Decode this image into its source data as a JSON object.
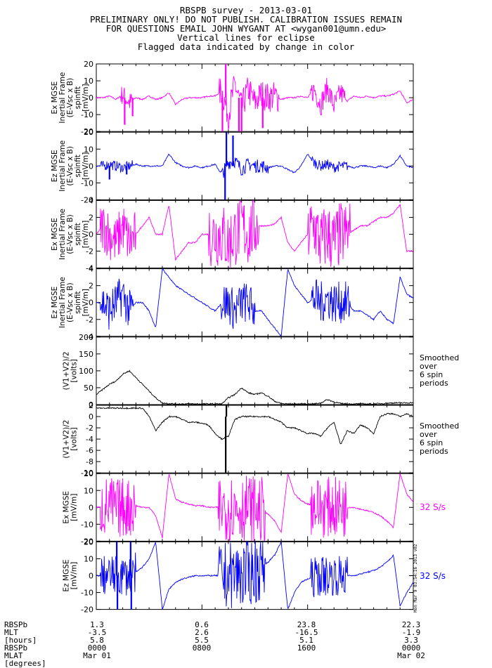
{
  "header": {
    "line1": "RBSPB survey - 2013-03-01",
    "line2": "PRELIMINARY ONLY! DO NOT PUBLISH. CALIBRATION ISSUES REMAIN",
    "line3": "FOR QUESTIONS EMAIL JOHN WYGANT AT <wygan001@umn.edu>",
    "line4": "Vertical lines for eclipse",
    "line5": "Flagged data indicated by change in color"
  },
  "colors": {
    "magenta": "#ff00ff",
    "blue": "#0000ff",
    "black": "#000000"
  },
  "chart_data": [
    {
      "type": "line",
      "ylabel": [
        "Ex MGSE",
        "Inertial Frame",
        "(E-Vsc x B)",
        "spinfit",
        "[mV/m]"
      ],
      "ylim": [
        -20,
        20
      ],
      "yticks": [
        20,
        10,
        0,
        -10,
        -20
      ],
      "color": "#ff00ff",
      "x": [
        0,
        0.5,
        1,
        1.5,
        2,
        2.5,
        3,
        3.5,
        4,
        4.5,
        5,
        5.5,
        6,
        6.5,
        7,
        7.5,
        8,
        8.5,
        9,
        9.5,
        10,
        10.5,
        11,
        11.5,
        12,
        12.5,
        13,
        13.5,
        14,
        14.5,
        15,
        15.5,
        16,
        16.5,
        17,
        17.5,
        18,
        18.5,
        19,
        19.5,
        20,
        20.5,
        21,
        21.5,
        22,
        22.5,
        23,
        23.5,
        24
      ],
      "values": [
        0,
        0,
        1,
        -1,
        2,
        -3,
        0,
        -1,
        1,
        -1,
        0,
        3,
        -4,
        -1,
        0,
        0,
        0,
        1,
        1,
        4,
        -10,
        8,
        -6,
        5,
        -3,
        2,
        0,
        1,
        -1,
        0,
        0,
        1,
        0,
        5,
        -4,
        6,
        -5,
        3,
        -2,
        1,
        0,
        1,
        0,
        1,
        1,
        2,
        4,
        -3,
        -1
      ],
      "bursts": [
        [
          1.8,
          2.8,
          6
        ],
        [
          9.3,
          13.8,
          9
        ],
        [
          16.2,
          18.8,
          7
        ]
      ],
      "spikes": [
        [
          2.15,
          -16
        ],
        [
          2.75,
          -11
        ],
        [
          9.55,
          -20
        ],
        [
          9.8,
          20
        ],
        [
          10.8,
          -20
        ],
        [
          11.0,
          -20
        ],
        [
          12.6,
          -18
        ]
      ],
      "grid": false
    },
    {
      "type": "line",
      "ylabel": [
        "Ez MGSE",
        "Inertial Frame",
        "(E-Vsc x B)",
        "spinfit",
        "[mV/m]"
      ],
      "ylim": [
        -20,
        20
      ],
      "yticks": [
        20,
        10,
        0,
        -10,
        -20
      ],
      "color": "#0000ff",
      "x": [
        0,
        0.5,
        1,
        1.5,
        2,
        2.5,
        3,
        3.5,
        4,
        4.5,
        5,
        5.5,
        6,
        6.5,
        7,
        7.5,
        8,
        8.5,
        9,
        9.5,
        10,
        10.5,
        11,
        11.5,
        12,
        12.5,
        13,
        13.5,
        14,
        14.5,
        15,
        15.5,
        16,
        16.5,
        17,
        17.5,
        18,
        18.5,
        19,
        19.5,
        20,
        20.5,
        21,
        21.5,
        22,
        22.5,
        23,
        23.5,
        24
      ],
      "values": [
        0,
        0,
        1,
        0,
        -1,
        0,
        1,
        0,
        0,
        0,
        0,
        7,
        2,
        0,
        -1,
        0,
        -1,
        0,
        1,
        -5,
        2,
        3,
        -2,
        1,
        0,
        0,
        -1,
        0,
        0,
        -2,
        -4,
        0,
        7,
        2,
        0,
        1,
        -1,
        0,
        0,
        -1,
        0,
        0,
        -1,
        0,
        -1,
        1,
        6,
        0,
        -1
      ],
      "bursts": [
        [
          0.3,
          2.8,
          3
        ],
        [
          9.4,
          13,
          4
        ],
        [
          16.3,
          19,
          3
        ]
      ],
      "spikes": [
        [
          9.75,
          -20
        ],
        [
          9.85,
          20
        ],
        [
          10.35,
          18
        ],
        [
          1.0,
          -8
        ],
        [
          2.3,
          -5
        ]
      ],
      "grid": false
    },
    {
      "type": "line",
      "ylabel": [
        "Ex MGSE",
        "Inertial Frame",
        "(E-Vsc x B)",
        "spinfit",
        "[mV/m]"
      ],
      "ylim": [
        -4,
        4
      ],
      "yticks": [
        4,
        2,
        0,
        -2,
        -4
      ],
      "color": "#ff00ff",
      "x": [
        0,
        0.5,
        1,
        1.5,
        2,
        2.5,
        3,
        3.5,
        4,
        4.5,
        5,
        5.5,
        6,
        6.5,
        7,
        7.5,
        8,
        8.5,
        9,
        9.5,
        10,
        10.5,
        11,
        11.5,
        12,
        12.5,
        13,
        13.5,
        14,
        14.5,
        15,
        15.5,
        16,
        16.5,
        17,
        17.5,
        18,
        18.5,
        19,
        19.5,
        20,
        20.5,
        21,
        21.5,
        22,
        22.5,
        23,
        23.5,
        24
      ],
      "values": [
        0,
        1,
        0,
        -1,
        1,
        -1,
        0,
        1,
        2,
        0,
        0,
        3.5,
        -3,
        -2,
        -1,
        -1,
        0,
        0,
        0,
        0,
        -1,
        0,
        1,
        0,
        1,
        1,
        1,
        1.2,
        2,
        -1,
        -2,
        -1,
        0,
        1,
        -1,
        0,
        -1,
        0,
        0,
        0.5,
        1,
        1,
        1.5,
        2,
        2,
        2.5,
        3.5,
        -2,
        -2
      ],
      "bursts": [
        [
          0.3,
          3.0,
          3
        ],
        [
          8.5,
          12.3,
          4
        ],
        [
          16.0,
          19.2,
          4
        ]
      ],
      "spikes": [],
      "grid": false
    },
    {
      "type": "line",
      "ylabel": [
        "Ez MGSE",
        "Inertial Frame",
        "(E-Vsc x B)",
        "spinfit",
        "[mV/m]"
      ],
      "ylim": [
        -4,
        4
      ],
      "yticks": [
        4,
        2,
        0,
        -2,
        -4
      ],
      "color": "#0000ff",
      "x": [
        0,
        0.5,
        1,
        1.5,
        2,
        2.5,
        3,
        3.5,
        4,
        4.5,
        5,
        5.5,
        6,
        6.5,
        7,
        7.5,
        8,
        8.5,
        9,
        9.5,
        10,
        10.5,
        11,
        11.5,
        12,
        12.5,
        13,
        13.5,
        14,
        14.5,
        15,
        15.5,
        16,
        16.5,
        17,
        17.5,
        18,
        18.5,
        19,
        19.5,
        20,
        20.5,
        21,
        21.5,
        22,
        22.5,
        23,
        23.5,
        24
      ],
      "values": [
        0,
        0,
        -1,
        0,
        1,
        -1,
        0,
        0,
        -1,
        -3,
        4,
        3,
        2,
        1.5,
        1,
        0.5,
        0,
        -0.5,
        -1,
        0,
        0,
        -1,
        0,
        0,
        -1,
        -1,
        -2,
        -3,
        -4,
        4,
        2,
        1,
        0,
        0.5,
        0,
        0.5,
        0,
        0,
        0,
        -1,
        -1,
        -1.5,
        -2,
        -1,
        -2,
        -2.5,
        3,
        1,
        0.5
      ],
      "bursts": [
        [
          0.3,
          2.8,
          2.5
        ],
        [
          9.4,
          12,
          2.5
        ],
        [
          16.3,
          19.2,
          2.5
        ]
      ],
      "spikes": [],
      "grid": false
    },
    {
      "type": "line",
      "ylabel": [
        "(V1+V2)/2",
        "[volts]"
      ],
      "ylim": [
        0,
        200
      ],
      "yticks": [
        200,
        150,
        100,
        50,
        0
      ],
      "color": "#000000",
      "x": [
        0,
        0.5,
        1,
        1.5,
        2,
        2.5,
        3,
        3.5,
        4,
        4.5,
        5,
        5.5,
        6,
        6.5,
        7,
        7.5,
        8,
        8.5,
        9,
        9.5,
        10,
        10.5,
        11,
        11.5,
        12,
        12.5,
        13,
        13.5,
        14,
        14.5,
        15,
        15.5,
        16,
        16.5,
        17,
        17.5,
        18,
        18.5,
        19,
        19.5,
        20,
        20.5,
        21,
        21.5,
        22,
        22.5,
        23,
        23.5,
        24
      ],
      "values": [
        30,
        45,
        60,
        70,
        90,
        100,
        80,
        60,
        40,
        20,
        5,
        3,
        2,
        2,
        2,
        2,
        2,
        2,
        2,
        2,
        20,
        30,
        50,
        35,
        30,
        35,
        25,
        10,
        3,
        2,
        2,
        2,
        2,
        2,
        5,
        15,
        8,
        3,
        2,
        2,
        2,
        2,
        2,
        3,
        4,
        5,
        5,
        5,
        6
      ],
      "bursts": [],
      "spikes": [],
      "side_note": [
        "Smoothed",
        "over",
        "6 spin",
        "periods"
      ],
      "grid": false
    },
    {
      "type": "line",
      "ylabel": [
        "(V1+V2)/2",
        "[volts]"
      ],
      "ylim": [
        -10,
        2
      ],
      "yticks": [
        2,
        0,
        -2,
        -4,
        -6,
        -8,
        -10
      ],
      "color": "#000000",
      "x": [
        0,
        0.5,
        1,
        1.5,
        2,
        2.5,
        3,
        3.5,
        4,
        4.5,
        5,
        5.5,
        6,
        6.5,
        7,
        7.5,
        8,
        8.5,
        9,
        9.5,
        10,
        10.5,
        11,
        11.5,
        12,
        12.5,
        13,
        13.5,
        14,
        14.5,
        15,
        15.5,
        16,
        16.5,
        17,
        17.5,
        18,
        18.5,
        19,
        19.5,
        20,
        20.5,
        21,
        21.5,
        22,
        22.5,
        23,
        23.5,
        24
      ],
      "values": [
        1.5,
        1.5,
        1.5,
        1.5,
        1.5,
        1.5,
        1.5,
        1.5,
        0,
        -2.5,
        -1,
        0,
        0,
        -0.5,
        -1,
        -1,
        -1.2,
        -1.5,
        -3,
        -4,
        -3.5,
        -0.5,
        0,
        0,
        0,
        0,
        0,
        -0.5,
        -1,
        -2,
        -2,
        -2.5,
        -3,
        -3,
        -3.5,
        -2,
        -1,
        -5,
        -2.5,
        -3,
        -1.5,
        -2,
        -3,
        0,
        0.5,
        0.5,
        0,
        0.5,
        0
      ],
      "bursts": [],
      "spikes": [
        [
          9.8,
          -10
        ],
        [
          9.85,
          2
        ]
      ],
      "side_note": [
        "Smoothed",
        "over",
        "6 spin",
        "periods"
      ],
      "grid": false
    },
    {
      "type": "line",
      "ylabel": [
        "Ex MGSE",
        "[mV/m]"
      ],
      "ylim": [
        -20,
        20
      ],
      "yticks": [
        20,
        10,
        0,
        -10,
        -20
      ],
      "color": "#ff00ff",
      "x": [
        0,
        0.5,
        1,
        1.5,
        2,
        2.5,
        3,
        3.5,
        4,
        4.5,
        5,
        5.5,
        6,
        6.5,
        7,
        7.5,
        8,
        8.5,
        9,
        9.5,
        10,
        10.5,
        11,
        11.5,
        12,
        12.5,
        13,
        13.5,
        14,
        14.5,
        15,
        15.5,
        16,
        16.5,
        17,
        17.5,
        18,
        18.5,
        19,
        19.5,
        20,
        20.5,
        21,
        21.5,
        22,
        22.5,
        23,
        23.5,
        24
      ],
      "values": [
        0,
        0,
        1,
        -1,
        0,
        0,
        1,
        0,
        0,
        -5,
        -18,
        20,
        5,
        3,
        2,
        1,
        1,
        0,
        0,
        0,
        0,
        0,
        0,
        0,
        -1,
        -2,
        -4,
        -8,
        -15,
        20,
        8,
        4,
        2,
        1,
        0,
        0,
        0,
        0,
        0,
        0,
        -1,
        -2,
        -3,
        -5,
        -8,
        -12,
        20,
        8,
        3
      ],
      "bursts": [
        [
          0.3,
          3.0,
          18
        ],
        [
          9.2,
          12.8,
          20
        ],
        [
          16.2,
          19.0,
          18
        ]
      ],
      "spikes": [],
      "side_note": [
        "32 S/s"
      ],
      "grid": false
    },
    {
      "type": "line",
      "ylabel": [
        "Ez MGSE",
        "[mV/m]"
      ],
      "ylim": [
        -20,
        20
      ],
      "yticks": [
        20,
        10,
        0,
        -10,
        -20
      ],
      "color": "#0000ff",
      "x": [
        0,
        0.5,
        1,
        1.5,
        2,
        2.5,
        3,
        3.5,
        4,
        4.5,
        5,
        5.5,
        6,
        6.5,
        7,
        7.5,
        8,
        8.5,
        9,
        9.5,
        10,
        10.5,
        11,
        11.5,
        12,
        12.5,
        13,
        13.5,
        14,
        14.5,
        15,
        15.5,
        16,
        16.5,
        17,
        17.5,
        18,
        18.5,
        19,
        19.5,
        20,
        20.5,
        21,
        21.5,
        22,
        22.5,
        23,
        23.5,
        24
      ],
      "values": [
        0,
        0,
        0,
        0,
        0,
        0,
        2,
        5,
        10,
        20,
        -20,
        -8,
        -4,
        -2,
        -1,
        0,
        0,
        0,
        0,
        0,
        0,
        1,
        1,
        2,
        3,
        5,
        8,
        12,
        20,
        -20,
        -10,
        -4,
        -2,
        -1,
        0,
        0,
        0,
        0,
        0,
        0,
        1,
        2,
        3,
        5,
        8,
        12,
        -18,
        -10,
        -4
      ],
      "bursts": [
        [
          0.3,
          3.0,
          12
        ],
        [
          9.2,
          12.8,
          20
        ],
        [
          16.2,
          19.0,
          12
        ]
      ],
      "spikes": [
        [
          1.55,
          20
        ],
        [
          1.6,
          -20
        ],
        [
          2.6,
          20
        ],
        [
          2.65,
          -20
        ]
      ],
      "side_note": [
        "32 S/s"
      ],
      "grid": false
    }
  ],
  "footer": {
    "labels": [
      "RBSPb",
      "MLT",
      "[hours]",
      "RBSPb",
      "MLAT",
      "[degrees]"
    ],
    "columns": [
      {
        "mlt": "1.3",
        "mlat": "-3.5",
        "x": "5.8",
        "time": "0000",
        "date": "Mar 01"
      },
      {
        "mlt": "0.6",
        "mlat": "2.6",
        "x": "5.5",
        "time": "0800",
        "date": ""
      },
      {
        "mlt": "23.8",
        "mlat": "-16.5",
        "x": "5.1",
        "time": "1600",
        "date": ""
      },
      {
        "mlt": "22.3",
        "mlat": "-1.9",
        "x": "3.3",
        "time": "0000",
        "date": "Mar 02"
      }
    ]
  },
  "stamp": "Mon Mar 9 03:54:16 2013 v02"
}
